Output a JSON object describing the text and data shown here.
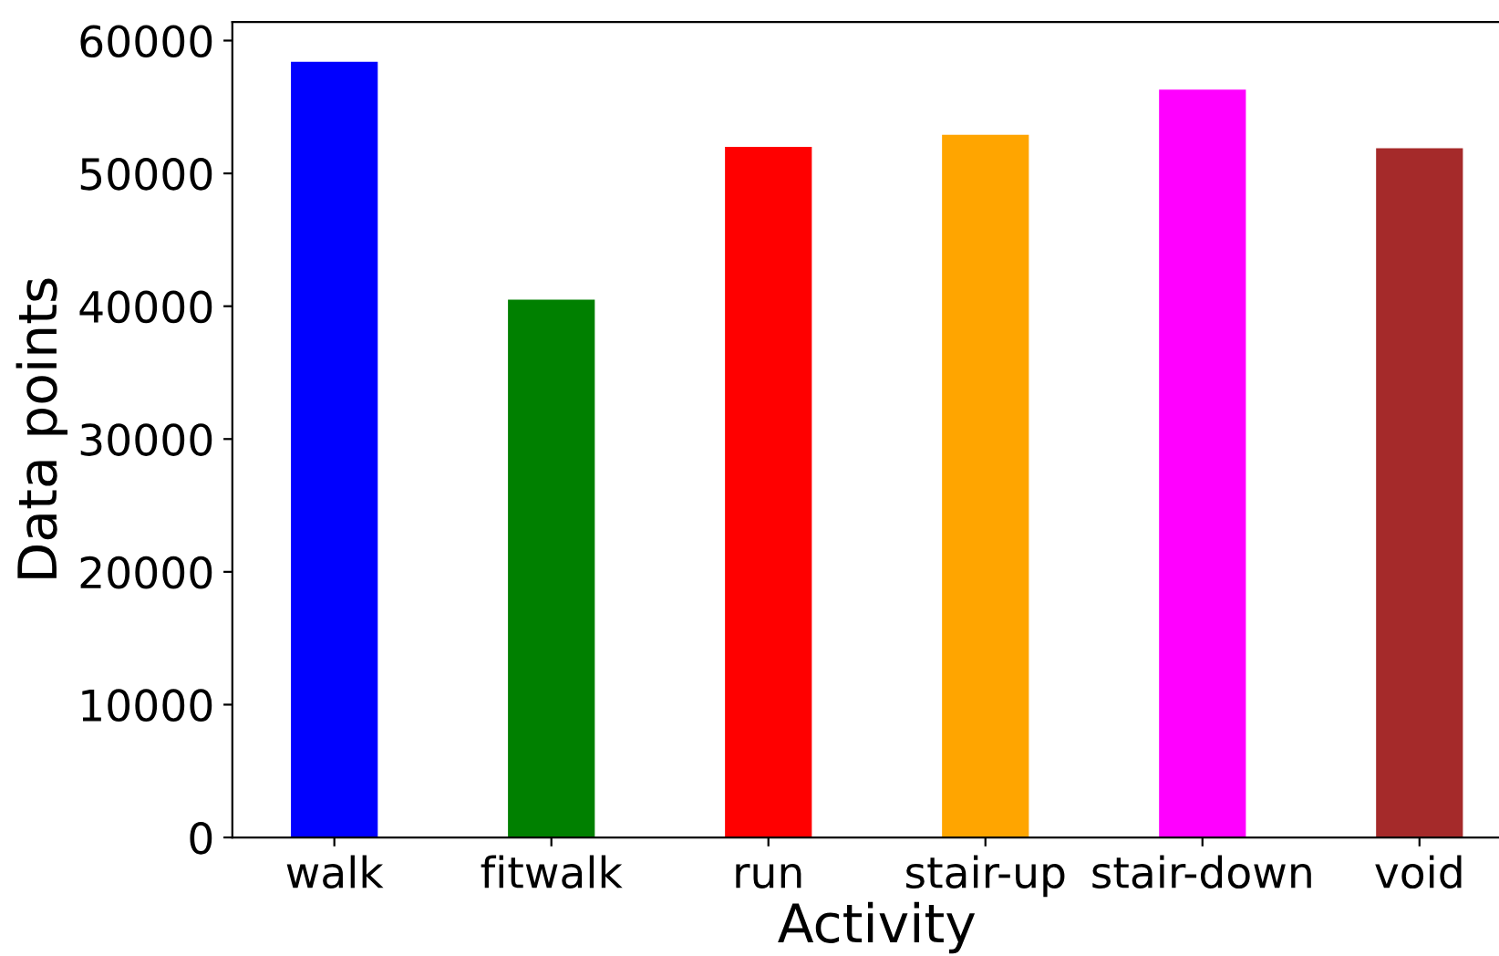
{
  "chart_data": {
    "type": "bar",
    "xlabel": "Activity",
    "ylabel": "Data points",
    "categories": [
      "walk",
      "fitwalk",
      "run",
      "stair-up",
      "stair-down",
      "void"
    ],
    "values": [
      58400,
      40500,
      52000,
      52900,
      56300,
      51900
    ],
    "colors": [
      "#0000ff",
      "#008000",
      "#ff0000",
      "#ffa500",
      "#ff00ff",
      "#a52a2a"
    ],
    "ylim": [
      0,
      61400
    ],
    "yticks": [
      0,
      10000,
      20000,
      30000,
      40000,
      50000,
      60000
    ],
    "grid": false,
    "legend": false
  }
}
